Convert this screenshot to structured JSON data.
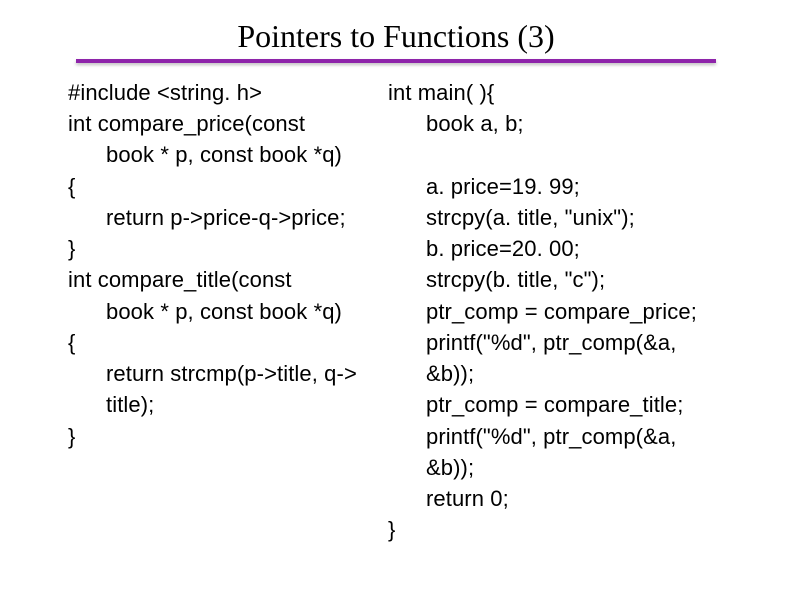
{
  "slide": {
    "title": "Pointers to Functions (3)",
    "divider_color": "#8e24aa",
    "background_color": "#ffffff",
    "title_font_family": "Times New Roman",
    "title_font_size": 32,
    "code_font_family": "Arial",
    "code_font_size": 22,
    "text_color": "#000000"
  },
  "left": {
    "l1": "#include <string. h>",
    "l2": "int compare_price(const",
    "l3": "book * p, const book *q)",
    "l4": "{",
    "l5": "return p->price-q->price;",
    "l6": "}",
    "l7": "int compare_title(const",
    "l8": "book * p, const book *q)",
    "l9": "{",
    "l10": "return strcmp(p->title, q->",
    "l11": "title);",
    "l12": "}"
  },
  "right": {
    "r1": "int main( ){",
    "r2": "book a, b;",
    "r3": "",
    "r4": "a. price=19. 99;",
    "r5": "strcpy(a. title, \"unix\");",
    "r6": "b. price=20. 00;",
    "r7": "strcpy(b. title, \"c\");",
    "r8": "ptr_comp = compare_price;",
    "r9": "printf(\"%d\", ptr_comp(&a,",
    "r10": "&b));",
    "r11": "ptr_comp = compare_title;",
    "r12": "printf(\"%d\", ptr_comp(&a,",
    "r13": "&b));",
    "r14": "return 0;",
    "r15": "}"
  }
}
